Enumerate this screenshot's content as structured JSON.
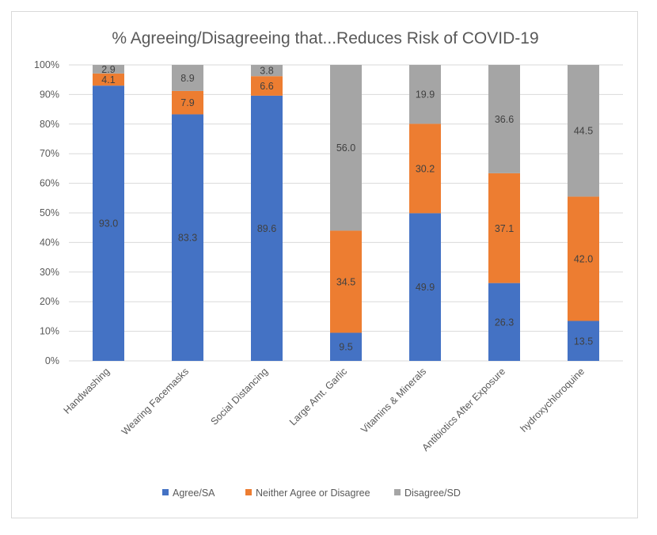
{
  "chart_data": {
    "type": "bar",
    "stacked": true,
    "title": "% Agreeing/Disagreeing that...Reduces Risk of COVID-19",
    "xlabel": "",
    "ylabel": "",
    "ylim": [
      0,
      100
    ],
    "yticks": [
      0,
      10,
      20,
      30,
      40,
      50,
      60,
      70,
      80,
      90,
      100
    ],
    "ytick_labels": [
      "0%",
      "10%",
      "20%",
      "30%",
      "40%",
      "50%",
      "60%",
      "70%",
      "80%",
      "90%",
      "100%"
    ],
    "grid": true,
    "legend_position": "bottom",
    "categories": [
      "Handwashing",
      "Wearing Facemasks",
      "Social Distancing",
      "Large Amt. Garlic",
      "Vitamins & Minerals",
      "Antibiotics After Exposure",
      "hydroxychloroquine"
    ],
    "series": [
      {
        "name": "Agree/SA",
        "color": "#4472c4",
        "values": [
          93.0,
          83.3,
          89.6,
          9.5,
          49.9,
          26.3,
          13.5
        ],
        "labels": [
          "93.0",
          "83.3",
          "89.6",
          "9.5",
          "49.9",
          "26.3",
          "13.5"
        ]
      },
      {
        "name": "Neither Agree or Disagree",
        "color": "#ed7d31",
        "values": [
          4.1,
          7.9,
          6.6,
          34.5,
          30.2,
          37.1,
          42.0
        ],
        "labels": [
          "4.1",
          "7.9",
          "6.6",
          "34.5",
          "30.2",
          "37.1",
          "42.0"
        ]
      },
      {
        "name": "Disagree/SD",
        "color": "#a5a5a5",
        "values": [
          2.9,
          8.9,
          3.8,
          56.0,
          19.9,
          36.6,
          44.5
        ],
        "labels": [
          "2.9",
          "8.9",
          "3.8",
          "56.0",
          "19.9",
          "36.6",
          "44.5"
        ]
      }
    ]
  }
}
